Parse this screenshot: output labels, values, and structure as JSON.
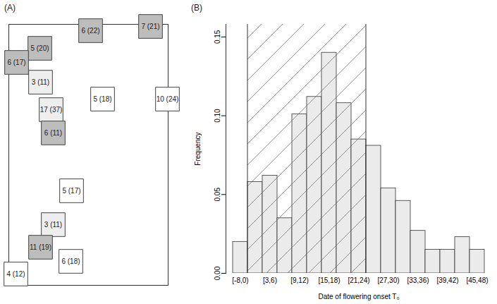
{
  "chart_data": [
    {
      "type": "scatter",
      "title": "(A)",
      "marker": "square",
      "tick_labels": false,
      "xlim": [
        0,
        226
      ],
      "ylim": [
        0,
        370
      ],
      "x": [
        116,
        201,
        44,
        11,
        45,
        133,
        225,
        60,
        63,
        89,
        63,
        45,
        88,
        10
      ],
      "y": [
        361,
        367,
        336,
        316,
        288,
        264,
        264,
        249,
        216,
        134,
        86,
        54,
        34,
        16
      ],
      "labels": [
        "6 (22)",
        "7 (21)",
        "5 (20)",
        "6 (17)",
        "3 (11)",
        "5 (18)",
        "10 (24)",
        "17 (37)",
        "6 (11)",
        "5 (17)",
        "3 (11)",
        "11 (19)",
        "6 (18)",
        "4 (12)"
      ],
      "colors": [
        "#bdbdbd",
        "#bdbdbd",
        "#bdbdbd",
        "#bdbdbd",
        "#eeeeee",
        "#ffffff",
        "#ffffff",
        "#eeeeee",
        "#bdbdbd",
        "#ffffff",
        "#eeeeee",
        "#bdbdbd",
        "#ffffff",
        "#ffffff"
      ]
    },
    {
      "type": "bar",
      "title": "(B)",
      "xlabel": "Date of flowering onset T₀",
      "ylabel": "Frequency",
      "categories": [
        "[-8,0)",
        null,
        "[3,6)",
        null,
        "[9,12)",
        null,
        "[15,18)",
        null,
        "[21,24)",
        null,
        "[27,30)",
        null,
        "[33,36)",
        null,
        "[39,42)",
        null,
        "[45,48)"
      ],
      "bins": [
        -8,
        0,
        3,
        6,
        9,
        12,
        15,
        18,
        21,
        24,
        27,
        30,
        33,
        36,
        39,
        42,
        45,
        48
      ],
      "values": [
        0.02,
        0.058,
        0.062,
        0.035,
        0.101,
        0.112,
        0.14,
        0.108,
        0.085,
        0.081,
        0.054,
        0.046,
        0.027,
        0.015,
        0.015,
        0.023,
        0.015
      ],
      "shaded_range": [
        0,
        24
      ],
      "color": "#ebebeb",
      "ylim": [
        0,
        0.158
      ],
      "yticks": [
        {
          "value": 0,
          "label": "0.00"
        },
        {
          "value": 0.05,
          "label": "0.05"
        },
        {
          "value": 0.1,
          "label": "0.10"
        },
        {
          "value": 0.15,
          "label": "0.15"
        }
      ]
    }
  ]
}
